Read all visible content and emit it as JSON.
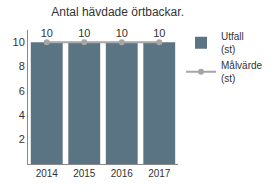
{
  "chart_data": {
    "type": "bar",
    "title": "Antal hävdade örtbackar.",
    "categories": [
      "2014",
      "2015",
      "2016",
      "2017"
    ],
    "series": [
      {
        "name": "Utfall (st)",
        "type": "bar",
        "color": "#5b7483",
        "values": [
          10,
          10,
          10,
          10
        ]
      },
      {
        "name": "Målvärde (st)",
        "type": "line",
        "marker": "circle",
        "color": "#a6a6a6",
        "values": [
          10,
          10,
          10,
          10
        ]
      }
    ],
    "ylim": [
      0,
      11
    ],
    "yticks": [
      2,
      4,
      6,
      8,
      10
    ],
    "grid": false,
    "data_labels": true,
    "legend": "right"
  }
}
